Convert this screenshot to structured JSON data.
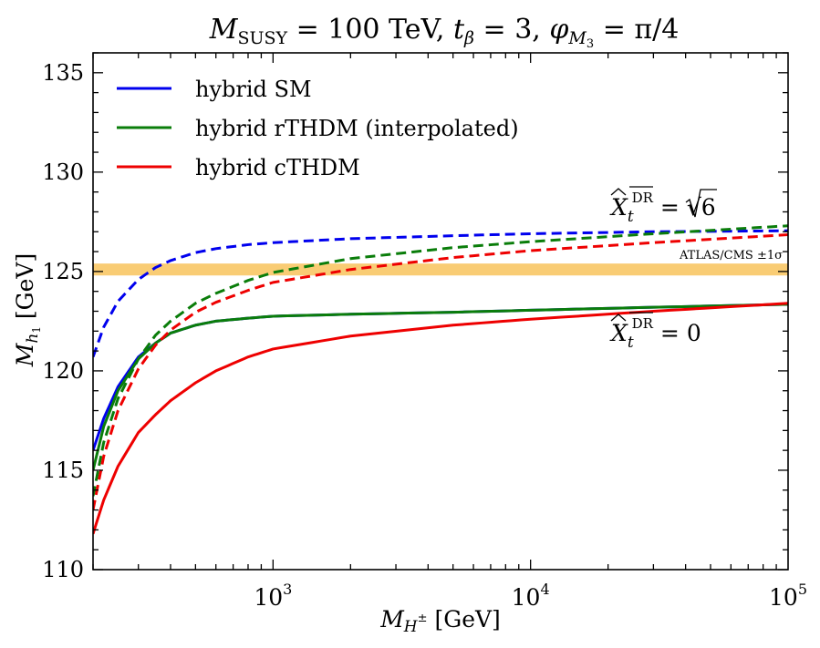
{
  "chart_data": {
    "type": "line",
    "title": "M_SUSY = 100 TeV, t_β = 3,  φ_M₃ = π/4",
    "title_parts": {
      "msusy_sym": "M",
      "msusy_sub": "SUSY",
      "msusy_val": " = 100 TeV, ",
      "tb_sym": "t",
      "tb_sub": "β",
      "tb_val": " = 3,  ",
      "phi_sym": "φ",
      "phi_sub": "M",
      "phi_subsub": "3",
      "phi_val": " = π/4"
    },
    "xlabel": "M_H± [GeV]",
    "xlabel_parts": {
      "sym": "M",
      "sub": "H",
      "subsup": "±",
      "unit": " [GeV]"
    },
    "ylabel": "M_h₁ [GeV]",
    "ylabel_parts": {
      "sym": "M",
      "sub": "h",
      "subsub": "1",
      "unit": " [GeV]"
    },
    "xscale": "log",
    "xlim": [
      200,
      100000
    ],
    "ylim": [
      110,
      136
    ],
    "x_ticks": [
      {
        "value": 1000,
        "base": "10",
        "exp": "3"
      },
      {
        "value": 10000,
        "base": "10",
        "exp": "4"
      },
      {
        "value": 100000,
        "base": "10",
        "exp": "5"
      }
    ],
    "y_ticks": [
      {
        "value": 110,
        "label": "110"
      },
      {
        "value": 115,
        "label": "115"
      },
      {
        "value": 120,
        "label": "120"
      },
      {
        "value": 125,
        "label": "125"
      },
      {
        "value": 130,
        "label": "130"
      },
      {
        "value": 135,
        "label": "135"
      }
    ],
    "band": {
      "name": "ATLAS/CMS ±1σ",
      "label": "ATLAS/CMS ±1σ",
      "y_low": 124.8,
      "y_high": 125.4,
      "color": "#f8c35c"
    },
    "legend": {
      "position": "top-left",
      "entries": [
        {
          "label": "hybrid SM",
          "color": "#0000ee"
        },
        {
          "label": "hybrid rTHDM (interpolated)",
          "color": "#0a7d0a"
        },
        {
          "label": "hybrid cTHDM",
          "color": "#ee0000"
        }
      ]
    },
    "annotations": [
      {
        "name": "xt-sqrt6",
        "sym": "X",
        "sub": "t",
        "sup": "DR",
        "rhs": " = √6",
        "x": 20000,
        "y": 126.9
      },
      {
        "name": "xt-zero",
        "sym": "X",
        "sub": "t",
        "sup": "DR",
        "rhs": " = 0",
        "x": 20000,
        "y": 122.3
      }
    ],
    "series": [
      {
        "name": "hybrid SM, X_t = 0",
        "color": "#0000ee",
        "style": "solid",
        "x": [
          200,
          220,
          250,
          300,
          350,
          400,
          500,
          600,
          800,
          1000,
          2000,
          5000,
          10000,
          30000,
          100000
        ],
        "y": [
          116.0,
          117.6,
          119.2,
          120.7,
          121.4,
          121.9,
          122.3,
          122.5,
          122.65,
          122.75,
          122.85,
          122.95,
          123.05,
          123.2,
          123.35
        ]
      },
      {
        "name": "hybrid rTHDM, X_t = 0",
        "color": "#0a7d0a",
        "style": "solid",
        "x": [
          200,
          220,
          250,
          300,
          350,
          400,
          500,
          600,
          800,
          1000,
          2000,
          5000,
          10000,
          30000,
          100000
        ],
        "y": [
          115.0,
          117.2,
          119.0,
          120.6,
          121.4,
          121.9,
          122.3,
          122.5,
          122.65,
          122.75,
          122.85,
          122.95,
          123.05,
          123.2,
          123.35
        ]
      },
      {
        "name": "hybrid cTHDM, X_t = 0",
        "color": "#ee0000",
        "style": "solid",
        "x": [
          200,
          220,
          250,
          300,
          350,
          400,
          500,
          600,
          800,
          1000,
          2000,
          5000,
          10000,
          30000,
          100000
        ],
        "y": [
          111.8,
          113.5,
          115.2,
          116.9,
          117.8,
          118.5,
          119.4,
          120.0,
          120.7,
          121.1,
          121.75,
          122.3,
          122.6,
          123.0,
          123.4
        ]
      },
      {
        "name": "hybrid SM, X_t = √6",
        "color": "#0000ee",
        "style": "dashed",
        "x": [
          200,
          220,
          250,
          300,
          350,
          400,
          500,
          600,
          800,
          1000,
          2000,
          5000,
          10000,
          30000,
          100000
        ],
        "y": [
          120.7,
          122.2,
          123.5,
          124.6,
          125.2,
          125.55,
          125.95,
          126.15,
          126.35,
          126.45,
          126.65,
          126.8,
          126.9,
          127.0,
          127.05
        ]
      },
      {
        "name": "hybrid rTHDM, X_t = √6",
        "color": "#0a7d0a",
        "style": "dashed",
        "x": [
          200,
          220,
          250,
          300,
          350,
          400,
          500,
          600,
          800,
          1000,
          2000,
          5000,
          10000,
          30000,
          100000
        ],
        "y": [
          113.7,
          116.4,
          118.6,
          120.6,
          121.8,
          122.5,
          123.4,
          123.9,
          124.55,
          124.95,
          125.65,
          126.2,
          126.5,
          126.9,
          127.3
        ]
      },
      {
        "name": "hybrid cTHDM, X_t = √6",
        "color": "#ee0000",
        "style": "dashed",
        "x": [
          200,
          220,
          250,
          300,
          350,
          400,
          500,
          600,
          800,
          1000,
          2000,
          5000,
          10000,
          30000,
          100000
        ],
        "y": [
          113.0,
          115.7,
          118.0,
          120.1,
          121.3,
          122.05,
          122.95,
          123.45,
          124.05,
          124.45,
          125.1,
          125.7,
          126.05,
          126.45,
          126.85
        ]
      }
    ]
  }
}
